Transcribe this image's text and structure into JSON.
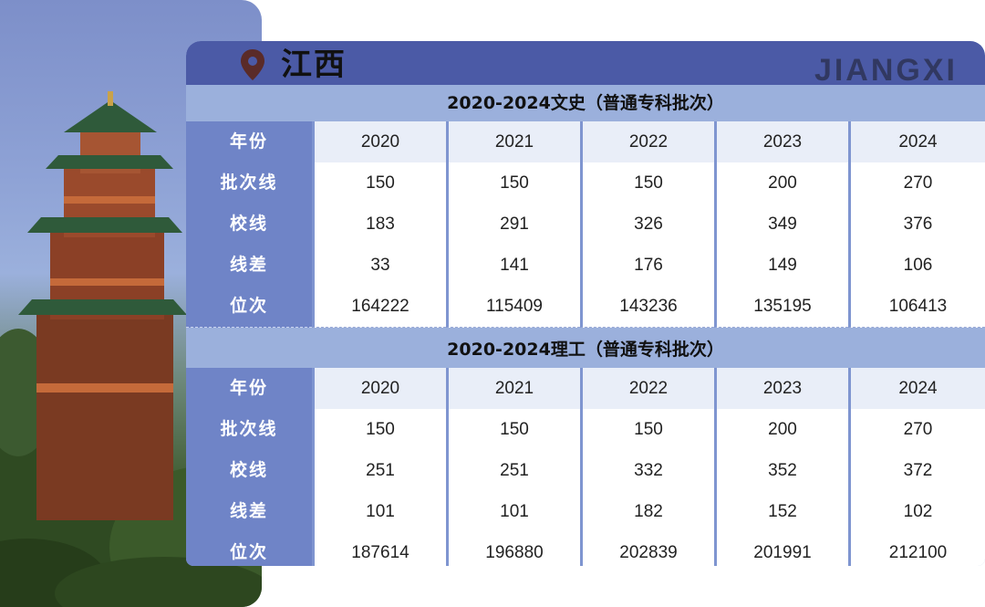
{
  "header": {
    "province": "江西",
    "watermark": "JIANGXI"
  },
  "sections": [
    {
      "title": "2020-2024文史（普通专科批次）",
      "rows": [
        {
          "label": "年份",
          "values": [
            "2020",
            "2021",
            "2022",
            "2023",
            "2024"
          ]
        },
        {
          "label": "批次线",
          "values": [
            "150",
            "150",
            "150",
            "200",
            "270"
          ]
        },
        {
          "label": "校线",
          "values": [
            "183",
            "291",
            "326",
            "349",
            "376"
          ]
        },
        {
          "label": "线差",
          "values": [
            "33",
            "141",
            "176",
            "149",
            "106"
          ]
        },
        {
          "label": "位次",
          "values": [
            "164222",
            "115409",
            "143236",
            "135195",
            "106413"
          ]
        }
      ]
    },
    {
      "title": "2020-2024理工（普通专科批次）",
      "rows": [
        {
          "label": "年份",
          "values": [
            "2020",
            "2021",
            "2022",
            "2023",
            "2024"
          ]
        },
        {
          "label": "批次线",
          "values": [
            "150",
            "150",
            "150",
            "200",
            "270"
          ]
        },
        {
          "label": "校线",
          "values": [
            "251",
            "251",
            "332",
            "352",
            "372"
          ]
        },
        {
          "label": "线差",
          "values": [
            "101",
            "101",
            "182",
            "152",
            "102"
          ]
        },
        {
          "label": "位次",
          "values": [
            "187614",
            "196880",
            "202839",
            "201991",
            "212100"
          ]
        }
      ]
    }
  ],
  "colors": {
    "header_bg": "#4b5aa6",
    "label_bg": "#6f84c7",
    "section_bg": "#9bb0dc",
    "pin": "#5a2b28"
  },
  "icons": {
    "pin": "location-pin-icon"
  }
}
